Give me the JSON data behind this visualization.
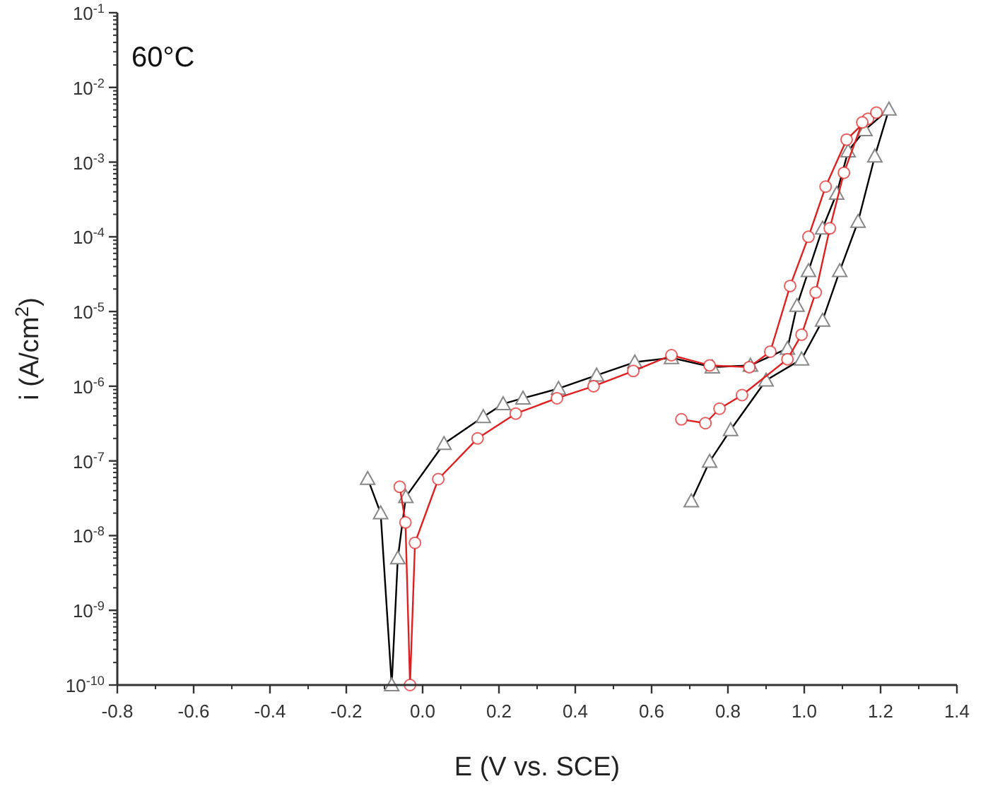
{
  "chart_data": {
    "type": "line",
    "xlabel": "E (V vs. SCE)",
    "ylabel": "i (A/cm$^{2}$)",
    "annotations": [
      "60°C"
    ],
    "log": "y",
    "grid": false,
    "xlim": [
      -0.8,
      1.4
    ],
    "xticks": [
      -0.8,
      -0.6,
      -0.4,
      -0.2,
      {
        "value": 0,
        "label": "0.0"
      },
      0.2,
      0.4,
      0.6,
      0.8,
      {
        "value": 1,
        "label": "1.0"
      },
      1.2,
      1.4
    ],
    "ylim": [
      1e-10,
      0.1
    ],
    "yticks": [
      {
        "value": 1e-10,
        "label": "10$^{-10}$"
      },
      {
        "value": 1e-09,
        "label": "10$^{-9}$"
      },
      {
        "value": 1e-08,
        "label": "10$^{-8}$"
      },
      {
        "value": 1e-07,
        "label": "10$^{-7}$"
      },
      {
        "value": 1e-06,
        "label": "10$^{-6}$"
      },
      {
        "value": 1e-05,
        "label": "10$^{-5}$"
      },
      {
        "value": 0.0001,
        "label": "10$^{-4}$"
      },
      {
        "value": 0.001,
        "label": "10$^{-3}$"
      },
      {
        "value": 0.01,
        "label": "10$^{-2}$"
      },
      {
        "value": 0.1,
        "label": "10$^{-1}$"
      }
    ],
    "series": [
      {
        "color": "#000000",
        "marker": "triangle",
        "x": [
          -0.144,
          -0.11,
          -0.081,
          -0.065,
          -0.044,
          0.056,
          0.159,
          0.211,
          0.263,
          0.356,
          0.456,
          0.556,
          0.652,
          0.759,
          0.859,
          0.956,
          0.981,
          1.011,
          1.048,
          1.085,
          1.115,
          1.159,
          1.222,
          1.185,
          1.141,
          1.093,
          1.048,
          0.993,
          0.9,
          0.807,
          0.752,
          0.704
        ],
        "values": [
          5.8e-08,
          2e-08,
          1e-10,
          5e-09,
          3.3e-08,
          1.7e-07,
          3.9e-07,
          5.8e-07,
          6.9e-07,
          9.3e-07,
          1.4e-06,
          2.1e-06,
          2.4e-06,
          1.8e-06,
          1.9e-06,
          3.2e-06,
          1.2e-05,
          3.5e-05,
          0.00013,
          0.00038,
          0.0014,
          0.0027,
          0.0051,
          0.0012,
          0.00016,
          3.5e-05,
          7.6e-06,
          2.3e-06,
          1.2e-06,
          2.6e-07,
          9.8e-08,
          2.9e-08
        ]
      },
      {
        "color": "#e02020",
        "marker": "circle",
        "x": [
          -0.06,
          -0.045,
          -0.033,
          -0.02,
          0.041,
          0.144,
          0.244,
          0.352,
          0.448,
          0.552,
          0.652,
          0.752,
          0.856,
          0.911,
          0.963,
          1.011,
          1.056,
          1.111,
          1.167,
          1.189,
          1.152,
          1.104,
          1.067,
          1.03,
          0.993,
          0.956,
          0.837,
          0.778,
          0.741,
          0.678
        ],
        "values": [
          4.5e-08,
          1.5e-08,
          1e-10,
          8e-09,
          5.7e-08,
          2e-07,
          4.3e-07,
          6.9e-07,
          1e-06,
          1.6e-06,
          2.6e-06,
          1.9e-06,
          1.8e-06,
          2.9e-06,
          2.2e-05,
          0.0001,
          0.00047,
          0.002,
          0.0038,
          0.0046,
          0.0034,
          0.00072,
          0.00013,
          1.8e-05,
          4.9e-06,
          2.3e-06,
          7.6e-07,
          5e-07,
          3.2e-07,
          3.6e-07
        ]
      }
    ]
  }
}
